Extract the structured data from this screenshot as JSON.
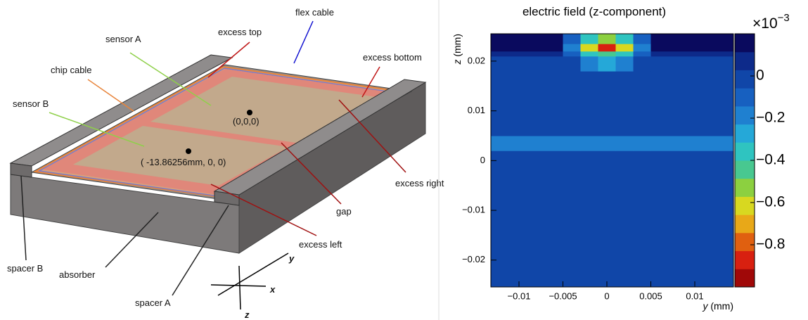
{
  "diagram": {
    "labels": [
      "flex cable",
      "sensor A",
      "excess top",
      "excess bottom",
      "chip cable",
      "sensor B",
      "(0,0,0)",
      "( -13.86256mm, 0, 0)",
      "excess right",
      "gap",
      "excess left",
      "spacer B",
      "absorber",
      "spacer A"
    ],
    "axes": [
      "y",
      "x",
      "z"
    ]
  },
  "chart_data": {
    "type": "heatmap",
    "title": "electric field (z-component)",
    "xlabel_var": "y",
    "xlabel_unit": "(mm)",
    "ylabel_var": "z",
    "ylabel_unit": "(mm)",
    "xlim": [
      -0.0132,
      0.0144
    ],
    "ylim": [
      -0.0254,
      0.0255
    ],
    "xticks": [
      {
        "value": -0.01,
        "label": "−0.01"
      },
      {
        "value": -0.005,
        "label": "−0.005"
      },
      0,
      0.005,
      0.01
    ],
    "yticks": [
      {
        "value": -0.02,
        "label": "−0.02"
      },
      {
        "value": -0.01,
        "label": "−0.01"
      },
      0,
      0.01,
      0.02
    ],
    "xbins": [
      -0.0132,
      -0.005,
      -0.003,
      -0.001,
      0.001,
      0.003,
      0.005,
      0.0144
    ],
    "ybins": [
      -0.0254,
      0.002,
      0.005,
      0.018,
      0.021,
      0.022,
      0.0235,
      0.0255
    ],
    "z": [
      [
        -0.05,
        -0.05,
        -0.05,
        -0.05,
        -0.05,
        -0.05,
        -0.05
      ],
      [
        -0.15,
        -0.15,
        -0.15,
        -0.15,
        -0.15,
        -0.15,
        -0.15
      ],
      [
        -0.05,
        -0.05,
        -0.05,
        -0.05,
        -0.05,
        -0.05,
        -0.05
      ],
      [
        -0.05,
        -0.05,
        -0.2,
        -0.25,
        -0.2,
        -0.05,
        -0.05
      ],
      [
        0.1,
        -0.1,
        -0.35,
        -0.45,
        -0.35,
        -0.1,
        0.1
      ],
      [
        0.15,
        -0.2,
        -0.6,
        -0.85,
        -0.6,
        -0.2,
        0.15
      ],
      [
        0.18,
        -0.1,
        -0.4,
        -0.5,
        -0.4,
        -0.1,
        0.18
      ]
    ],
    "clim": [
      -1.0,
      0.2
    ],
    "colorbar_ticks": [
      0,
      {
        "value": -0.2,
        "label": "−0.2"
      },
      {
        "value": -0.4,
        "label": "−0.4"
      },
      {
        "value": -0.6,
        "label": "−0.6"
      },
      {
        "value": -0.8,
        "label": "−0.8"
      }
    ],
    "colorbar_multiplier": "×10",
    "colorbar_exponent": "−3",
    "colormap": [
      "#a00808",
      "#d82010",
      "#e06010",
      "#e8a818",
      "#d8d820",
      "#8cd040",
      "#48c890",
      "#2fc4c0",
      "#25a8d8",
      "#1f80d0",
      "#1760c0",
      "#1046a8",
      "#0d2a8a",
      "#0a0a5e"
    ]
  }
}
